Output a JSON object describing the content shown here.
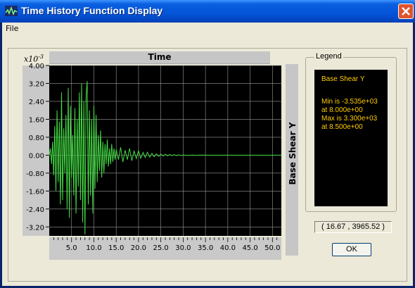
{
  "window": {
    "title": "Time History Function Display",
    "menu": {
      "file": "File"
    }
  },
  "plot": {
    "top_label": "Time",
    "exponent_label": "x10",
    "exponent_power": "-3",
    "right_label": "Base Shear Y",
    "line_color": "#44dd44",
    "grid_color": "#9a9a9a",
    "background_color": "#000000"
  },
  "legend": {
    "title": "Legend",
    "series": "Base Shear Y",
    "lines": [
      "Min is -3.535e+03",
      "at 8.000e+00",
      "Max is 3.300e+03",
      "at 8.500e+00"
    ],
    "text_color": "#ffcc00"
  },
  "coords_readout": "( 16.67 , 3965.52 )",
  "ok_button": "OK",
  "chart_data": {
    "type": "line",
    "title": "",
    "xlabel": "Time",
    "ylabel": "Base Shear Y",
    "xlim": [
      0,
      52
    ],
    "ylim": [
      -3.6,
      4.0
    ],
    "x_ticks": [
      "5.0",
      "10.0",
      "15.0",
      "20.0",
      "25.0",
      "30.0",
      "35.0",
      "40.0",
      "45.0",
      "50.0"
    ],
    "y_ticks": [
      "4.00",
      "3.20",
      "2.40",
      "1.60",
      "0.80",
      "0.00",
      "-0.80",
      "-1.60",
      "-2.40",
      "-3.20"
    ],
    "y_tick_values": [
      4.0,
      3.2,
      2.4,
      1.6,
      0.8,
      0.0,
      -0.8,
      -1.6,
      -2.4,
      -3.2
    ],
    "x_tick_values": [
      5,
      10,
      15,
      20,
      25,
      30,
      35,
      40,
      45,
      50
    ],
    "series": [
      {
        "x": [
          0.0,
          0.25,
          0.5,
          0.75,
          1.0,
          1.25,
          1.5,
          1.75,
          2.0,
          2.25,
          2.5,
          2.75,
          3.0,
          3.25,
          3.5,
          3.75,
          4.0,
          4.25,
          4.5,
          4.75,
          5.0,
          5.25,
          5.5,
          5.75,
          6.0,
          6.25,
          6.5,
          6.75,
          7.0,
          7.25,
          7.5,
          7.75,
          8.0,
          8.25,
          8.5,
          8.75,
          9.0,
          9.25,
          9.5,
          9.75,
          10.0,
          10.25,
          10.5,
          10.75,
          11.0,
          11.25,
          11.5,
          11.75,
          12.0,
          12.25,
          12.5,
          12.75,
          13.0,
          13.25,
          13.5,
          13.75,
          14.0,
          14.25,
          14.5,
          14.75,
          15.0,
          15.5,
          16.0,
          16.5,
          17.0,
          17.5,
          18.0,
          18.5,
          19.0,
          19.5,
          20.0,
          20.5,
          21.0,
          21.5,
          22.0,
          22.5,
          23.0,
          23.5,
          24.0,
          24.5,
          25.0,
          25.5,
          26.0,
          26.5,
          27.0,
          27.5,
          28.0,
          28.5,
          29.0,
          29.5,
          30.0,
          31.0,
          32.0,
          33.0,
          34.0,
          35.0,
          36.0,
          38.0,
          40.0,
          45.0,
          50.0,
          52.0
        ],
        "y": [
          0.0,
          0.3,
          -0.4,
          0.6,
          -0.9,
          1.3,
          -1.6,
          2.0,
          -1.2,
          1.5,
          -2.2,
          2.8,
          -2.0,
          1.2,
          -0.8,
          1.8,
          -2.4,
          3.0,
          -2.8,
          2.2,
          -1.0,
          0.9,
          -1.8,
          2.1,
          -2.6,
          1.6,
          -1.4,
          2.8,
          -2.0,
          3.2,
          -3.0,
          2.4,
          -3.535,
          2.6,
          3.3,
          -2.2,
          2.0,
          -1.8,
          1.6,
          -2.6,
          2.2,
          -1.5,
          1.8,
          -1.2,
          0.9,
          -0.7,
          1.1,
          -1.0,
          0.6,
          -0.8,
          0.5,
          -0.4,
          0.7,
          -0.5,
          0.3,
          -0.4,
          0.5,
          -0.3,
          0.3,
          -0.2,
          0.25,
          -0.2,
          0.35,
          -0.3,
          0.22,
          -0.2,
          0.3,
          -0.25,
          0.18,
          -0.15,
          0.2,
          -0.14,
          0.12,
          -0.1,
          0.13,
          -0.09,
          0.08,
          -0.07,
          0.06,
          -0.05,
          0.05,
          -0.04,
          0.04,
          -0.03,
          0.03,
          -0.02,
          0.02,
          -0.02,
          0.015,
          -0.01,
          0.01,
          -0.008,
          0.006,
          -0.004,
          0.002,
          0.0,
          0.0,
          0.0,
          0.0,
          0.0,
          0.0,
          0.0
        ]
      }
    ],
    "grid": true
  }
}
